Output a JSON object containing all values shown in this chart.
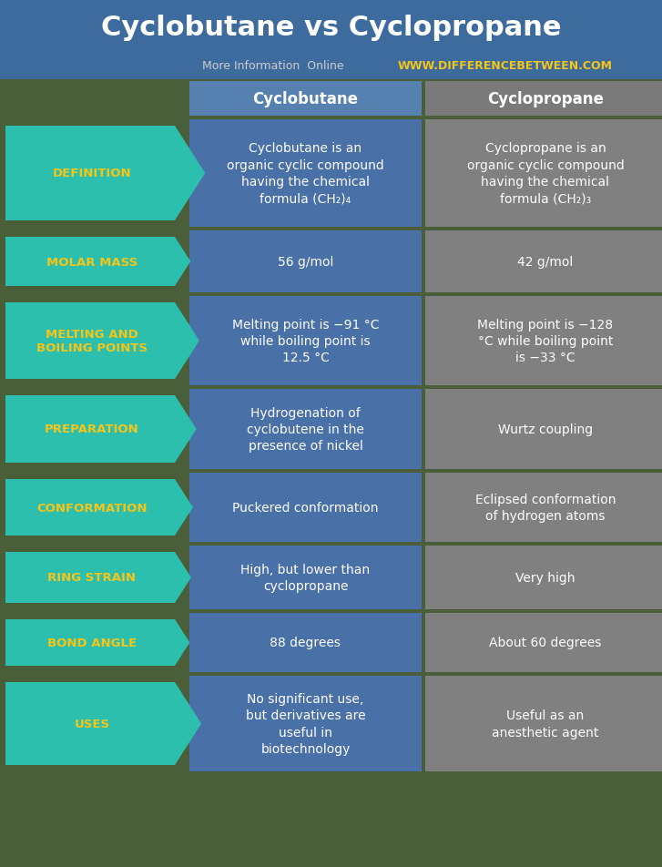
{
  "title": "Cyclobutane vs Cyclopropane",
  "subtitle_gray": "More Information  Online",
  "subtitle_yellow": "WWW.DIFFERENCEBETWEEN.COM",
  "col1_header": "Cyclobutane",
  "col2_header": "Cyclopropane",
  "rows": [
    {
      "label": "DEFINITION",
      "col1": "Cyclobutane is an\norganic cyclic compound\nhaving the chemical\nformula (CH₂)₄",
      "col2": "Cyclopropane is an\norganic cyclic compound\nhaving the chemical\nformula (CH₂)₃"
    },
    {
      "label": "MOLAR MASS",
      "col1": "56 g/mol",
      "col2": "42 g/mol"
    },
    {
      "label": "MELTING AND\nBOILING POINTS",
      "col1": "Melting point is −91 °C\nwhile boiling point is\n12.5 °C",
      "col2": "Melting point is −128\n°C while boiling point\nis −33 °C"
    },
    {
      "label": "PREPARATION",
      "col1": "Hydrogenation of\ncyclobutene in the\npresence of nickel",
      "col2": "Wurtz coupling"
    },
    {
      "label": "CONFORMATION",
      "col1": "Puckered conformation",
      "col2": "Eclipsed conformation\nof hydrogen atoms"
    },
    {
      "label": "RING STRAIN",
      "col1": "High, but lower than\ncyclopropane",
      "col2": "Very high"
    },
    {
      "label": "BOND ANGLE",
      "col1": "88 degrees",
      "col2": "About 60 degrees"
    },
    {
      "label": "USES",
      "col1": "No significant use,\nbut derivatives are\nuseful in\nbiotechnology",
      "col2": "Useful as an\nanesthetic agent"
    }
  ],
  "title_bg": "#3d6b9e",
  "subtitle_gray_color": "#cccccc",
  "subtitle_yellow_color": "#f5c518",
  "header_col1_bg": "#5580b0",
  "header_col2_bg": "#7a7a7a",
  "col1_bg": "#4a70a8",
  "col2_bg": "#808080",
  "arrow_bg": "#2dbfad",
  "arrow_text_color": "#f5c518",
  "cell_text_color": "#ffffff",
  "bg_color": "#4a5e3a",
  "fig_width": 7.27,
  "fig_height": 9.53
}
